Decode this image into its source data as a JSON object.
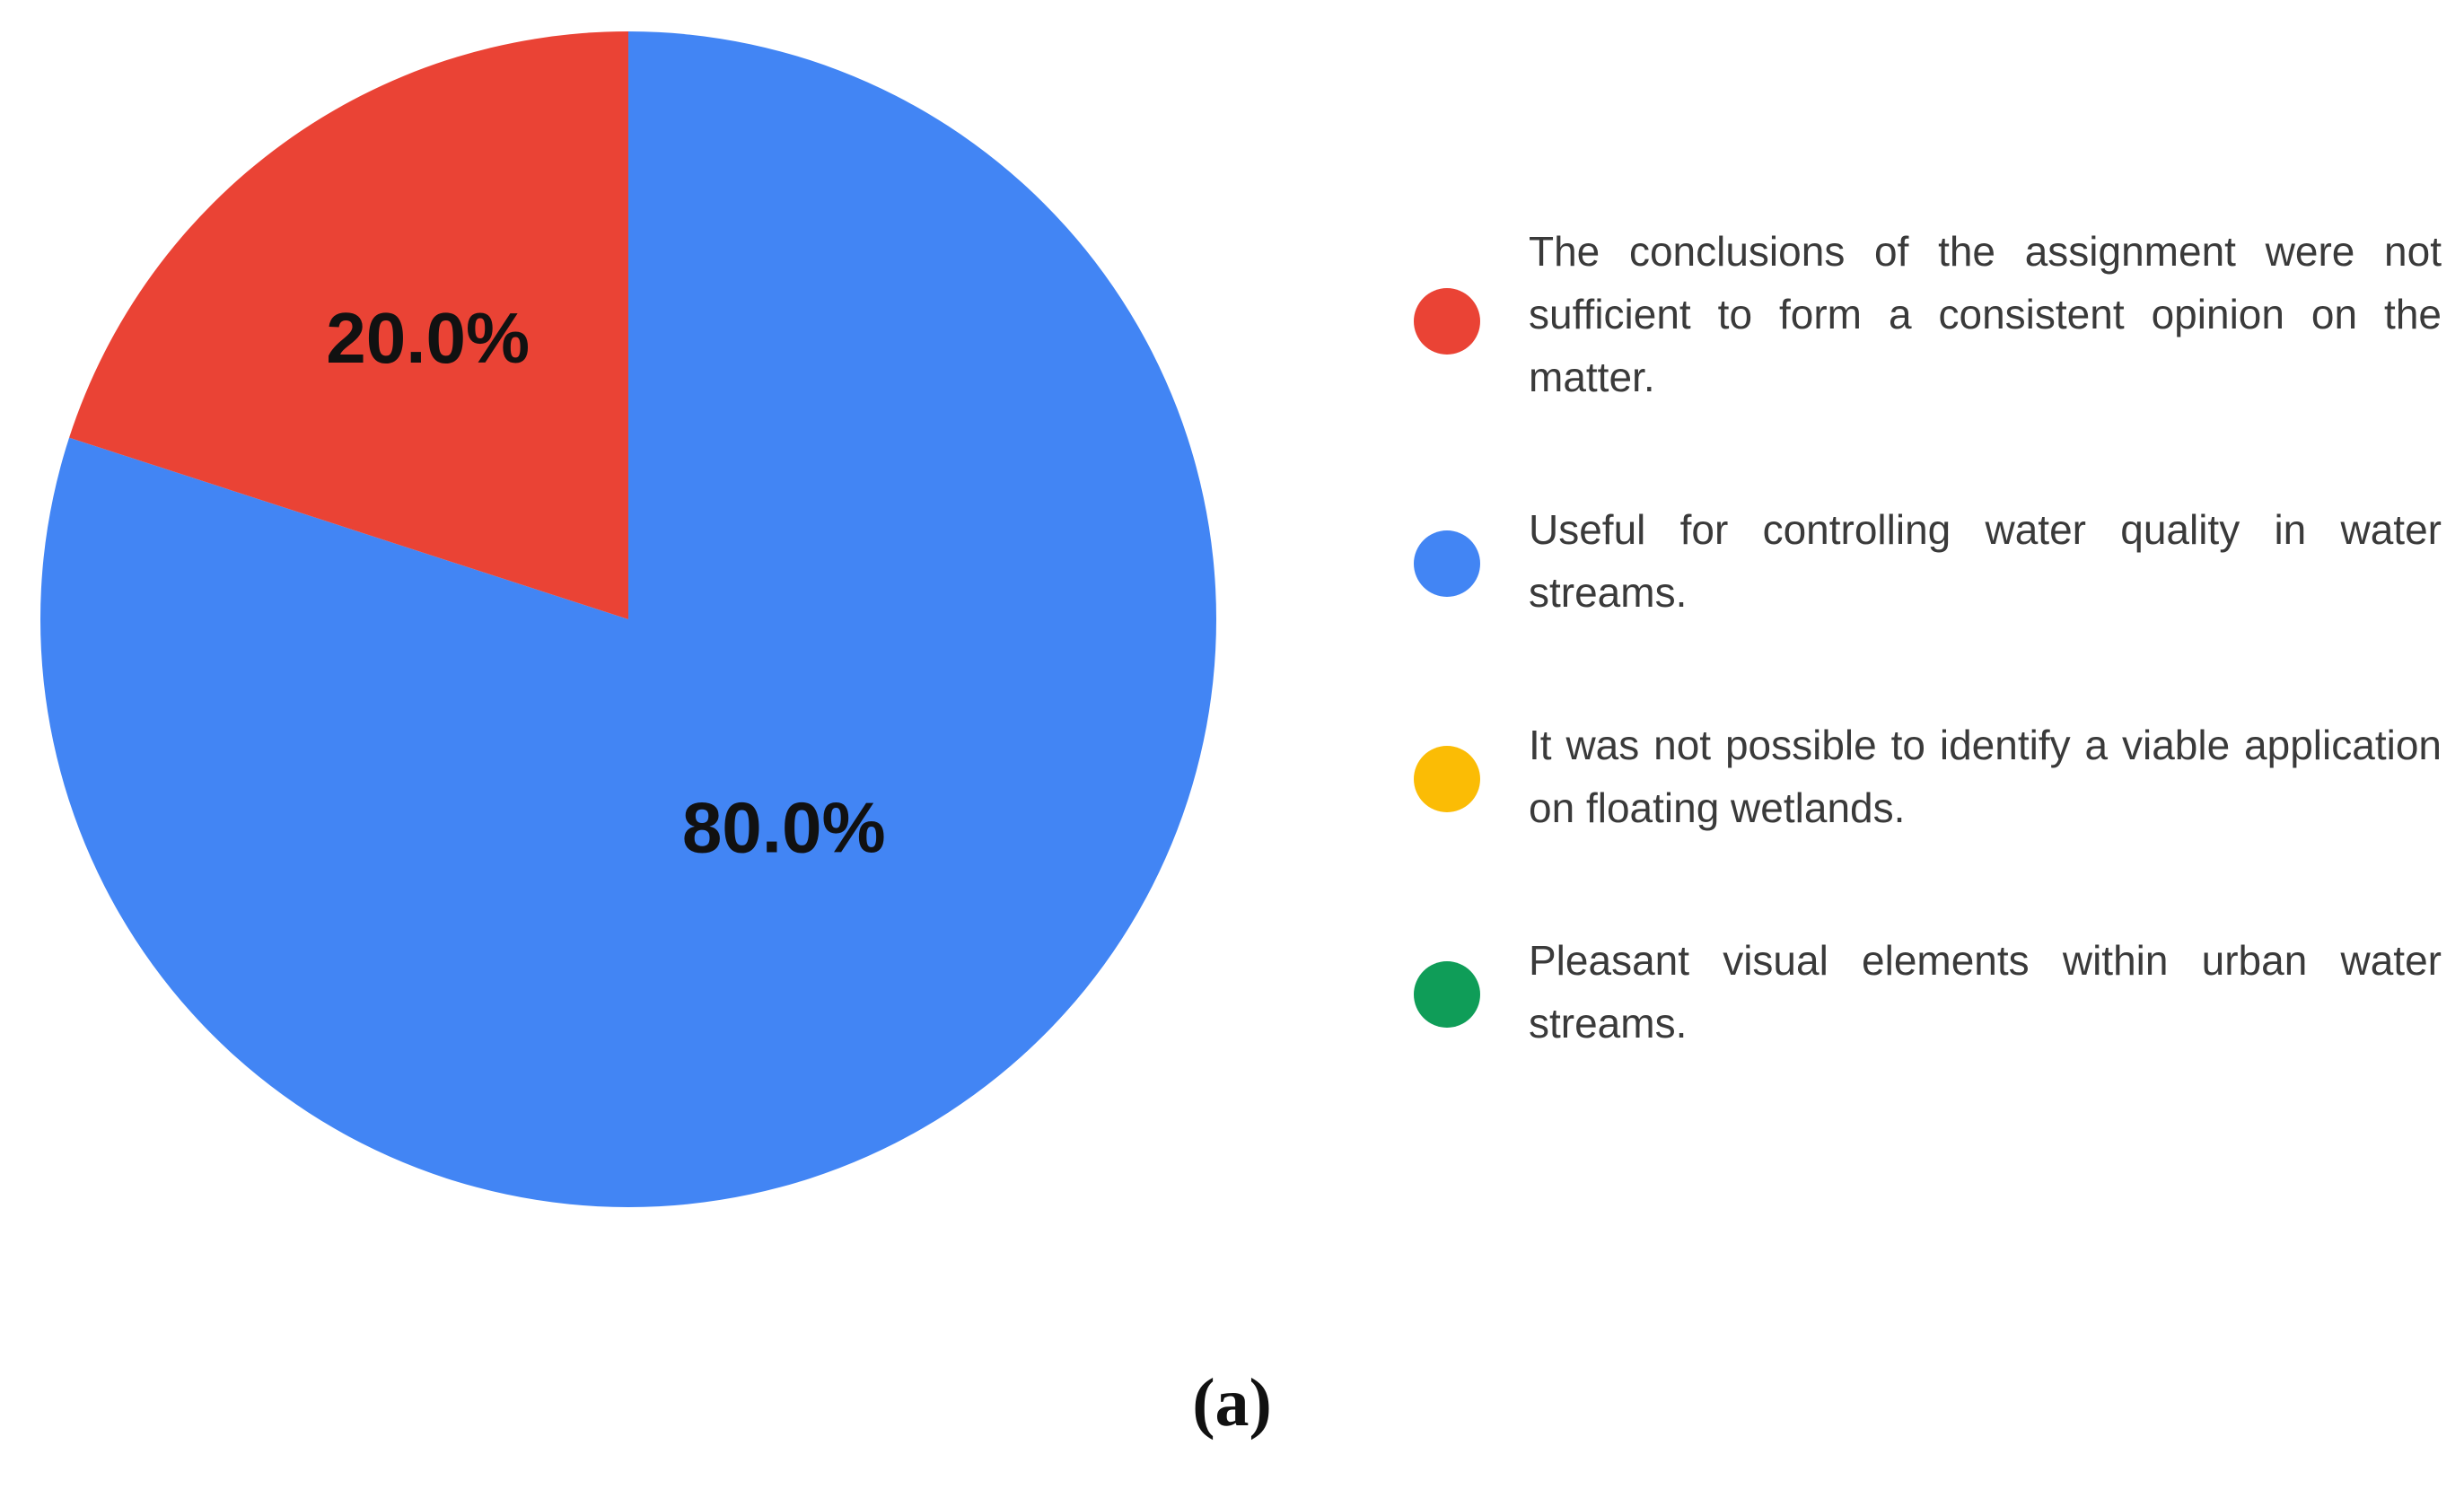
{
  "chart_data": {
    "type": "pie",
    "slices": [
      {
        "label": "The conclusions of the assignment were not sufficient to form a consistent opinion on the matter.",
        "value": 20.0,
        "display": "20.0%",
        "color": "#EA4335"
      },
      {
        "label": "Useful for controlling water quality in water streams.",
        "value": 80.0,
        "display": "80.0%",
        "color": "#4285F4"
      },
      {
        "label": "It was not possible to identify a viable application on floating wetlands.",
        "value": 0.0,
        "display": "",
        "color": "#FBBC05"
      },
      {
        "label": "Pleasant visual elements within urban water streams.",
        "value": 0.0,
        "display": "",
        "color": "#0F9D58"
      }
    ],
    "legend_position": "right"
  },
  "caption": "(a)"
}
